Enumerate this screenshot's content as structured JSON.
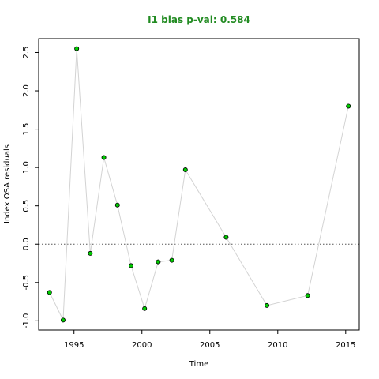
{
  "chart_data": {
    "type": "scatter",
    "title": "I1 bias p-val: 0.584",
    "title_color": "#228B22",
    "xlabel": "Time",
    "ylabel": "Index OSA residuals",
    "xlim": [
      1992.4,
      2016.0
    ],
    "ylim": [
      -1.12,
      2.68
    ],
    "x_ticks": [
      1995,
      2000,
      2005,
      2010,
      2015
    ],
    "x_tick_labels": [
      "1995",
      "2000",
      "2005",
      "2010",
      "2015"
    ],
    "y_ticks": [
      -1.0,
      -0.5,
      0.0,
      0.5,
      1.0,
      1.5,
      2.0,
      2.5
    ],
    "y_tick_labels": [
      "-1.0",
      "-0.5",
      "0.0",
      "0.5",
      "1.0",
      "1.5",
      "2.0",
      "2.5"
    ],
    "reference_line": {
      "y": 0,
      "style": "dotted",
      "color": "#555555"
    },
    "line_color": "#d3d3d3",
    "point_fill": "#00cc00",
    "point_stroke": "#000000",
    "grid": false,
    "series": [
      {
        "x": [
          1993.2,
          1994.2,
          1995.2,
          1996.2,
          1997.2,
          1998.2,
          1999.2,
          2000.2,
          2001.2,
          2002.2,
          2003.2,
          2006.2,
          2009.2,
          2012.2,
          2015.2
        ],
        "y": [
          -0.63,
          -0.99,
          2.55,
          -0.12,
          1.13,
          0.51,
          -0.28,
          -0.84,
          -0.23,
          -0.21,
          0.97,
          0.09,
          -0.8,
          -0.67,
          1.8
        ]
      }
    ]
  }
}
